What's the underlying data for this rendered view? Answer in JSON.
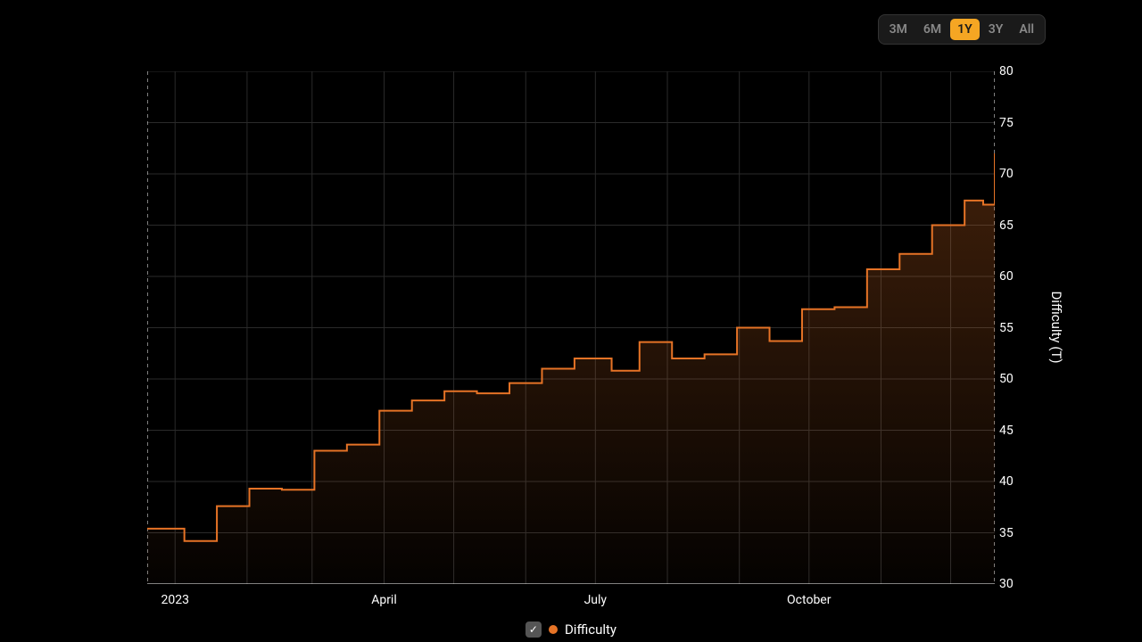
{
  "range_selector": {
    "options": [
      "3M",
      "6M",
      "1Y",
      "3Y",
      "All"
    ],
    "active": "1Y",
    "inactive_color": "#888888",
    "active_bg": "#f5a623",
    "active_fg": "#1a1a1a",
    "container_bg": "#1a1a1a",
    "container_border": "#333333"
  },
  "chart": {
    "type": "step-area",
    "background_color": "#000000",
    "grid_color": "#2a2a2a",
    "boundary_dash_color": "#ffffff",
    "line_color": "#e67326",
    "line_width": 2,
    "fill_top_color": "rgba(230,115,38,0.28)",
    "fill_bottom_color": "rgba(230,115,38,0.02)",
    "y_axis": {
      "title": "Difficulty (T)",
      "title_fontsize": 15,
      "min": 30,
      "max": 80,
      "tick_step": 5,
      "ticks": [
        30,
        35,
        40,
        45,
        50,
        55,
        60,
        65,
        70,
        75,
        80
      ],
      "tick_fontsize": 14,
      "tick_color": "#ffffff",
      "position": "right"
    },
    "x_axis": {
      "min": 0,
      "max": 365,
      "ticks": [
        {
          "day": 12,
          "label": "2023"
        },
        {
          "day": 102,
          "label": "April"
        },
        {
          "day": 193,
          "label": "July"
        },
        {
          "day": 285,
          "label": "October"
        }
      ],
      "gridlines": [
        12,
        43,
        71,
        102,
        132,
        163,
        193,
        224,
        255,
        285,
        316,
        346
      ],
      "tick_fontsize": 14,
      "tick_color": "#ffffff"
    },
    "series": {
      "name": "Difficulty",
      "color": "#e67326",
      "points": [
        {
          "day": 0,
          "value": 35.4
        },
        {
          "day": 16,
          "value": 34.2
        },
        {
          "day": 30,
          "value": 37.6
        },
        {
          "day": 44,
          "value": 39.3
        },
        {
          "day": 58,
          "value": 39.2
        },
        {
          "day": 72,
          "value": 43.0
        },
        {
          "day": 86,
          "value": 43.6
        },
        {
          "day": 100,
          "value": 46.9
        },
        {
          "day": 114,
          "value": 47.9
        },
        {
          "day": 128,
          "value": 48.8
        },
        {
          "day": 142,
          "value": 48.6
        },
        {
          "day": 156,
          "value": 49.6
        },
        {
          "day": 170,
          "value": 51.0
        },
        {
          "day": 184,
          "value": 52.0
        },
        {
          "day": 200,
          "value": 50.8
        },
        {
          "day": 212,
          "value": 53.6
        },
        {
          "day": 226,
          "value": 52.0
        },
        {
          "day": 240,
          "value": 52.4
        },
        {
          "day": 254,
          "value": 55.0
        },
        {
          "day": 268,
          "value": 53.7
        },
        {
          "day": 282,
          "value": 56.8
        },
        {
          "day": 296,
          "value": 57.0
        },
        {
          "day": 310,
          "value": 60.7
        },
        {
          "day": 324,
          "value": 62.2
        },
        {
          "day": 338,
          "value": 65.0
        },
        {
          "day": 352,
          "value": 67.4
        },
        {
          "day": 360,
          "value": 67.0
        },
        {
          "day": 365,
          "value": 72.0
        }
      ]
    }
  },
  "legend": {
    "label": "Difficulty",
    "dot_color": "#e67326",
    "checked": true,
    "checkbox_bg": "#555555",
    "checkmark": "✓"
  }
}
